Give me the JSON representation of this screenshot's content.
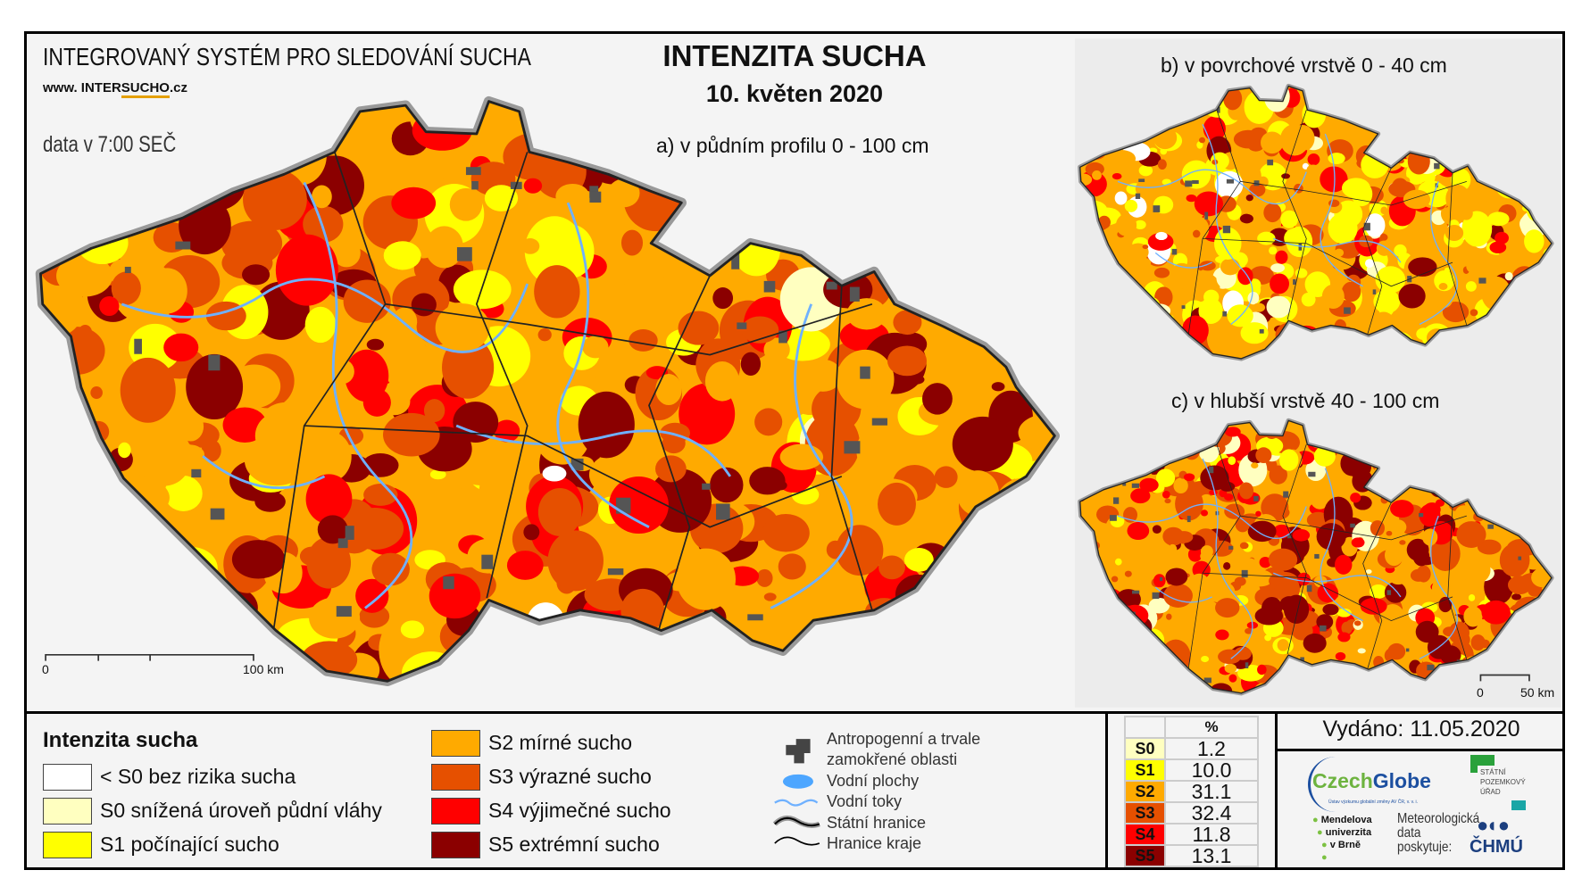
{
  "header": {
    "system_title": "INTEGROVANÝ SYSTÉM PRO SLEDOVÁNÍ SUCHA",
    "website_prefix": "www. INTER",
    "website_brand": "SUCHO",
    "website_suffix": ".cz",
    "data_time": "data v 7:00 SEČ",
    "main_title": "INTENZITA SUCHA",
    "date": "10. květen 2020"
  },
  "maps": {
    "a_title": "a) v půdním profilu 0 - 100 cm",
    "b_title": "b) v povrchové vrstvě 0 - 40 cm",
    "c_title": "c) v hlubší vrstvě 40 - 100 cm",
    "main_scale": {
      "start": "0",
      "end": "100 km"
    },
    "small_scale": {
      "start": "0",
      "end": "50 km"
    }
  },
  "legend": {
    "title": "Intenzita sucha",
    "classes": [
      {
        "code": "S-",
        "label": "< S0 bez rizika sucha",
        "color": "#ffffff"
      },
      {
        "code": "S0",
        "label": "S0 snížená úroveň půdní vláhy",
        "color": "#ffffc0"
      },
      {
        "code": "S1",
        "label": "S1 počínající sucho",
        "color": "#ffff00"
      },
      {
        "code": "S2",
        "label": "S2 mírné sucho",
        "color": "#ffaa00"
      },
      {
        "code": "S3",
        "label": "S3 výrazné sucho",
        "color": "#e65000"
      },
      {
        "code": "S4",
        "label": "S4 výjimečné sucho",
        "color": "#ff0000"
      },
      {
        "code": "S5",
        "label": "S5 extrémní sucho",
        "color": "#8b0000"
      }
    ],
    "symbols": {
      "anthropogenic": "Antropogenní a trvale",
      "anthropogenic2": "zamokřené oblasti",
      "water_areas": "Vodní plochy",
      "streams": "Vodní toky",
      "state_border": "Státní hranice",
      "region_border": "Hranice kraje"
    }
  },
  "stats": {
    "header": "%",
    "rows": [
      {
        "code": "S0",
        "value": "1.2",
        "color": "#ffffc0"
      },
      {
        "code": "S1",
        "value": "10.0",
        "color": "#ffff00"
      },
      {
        "code": "S2",
        "value": "31.1",
        "color": "#ffaa00"
      },
      {
        "code": "S3",
        "value": "32.4",
        "color": "#e65000"
      },
      {
        "code": "S4",
        "value": "11.8",
        "color": "#ff0000"
      },
      {
        "code": "S5",
        "value": "13.1",
        "color": "#8b0000"
      }
    ]
  },
  "issued": "Vydáno: 11.05.2020",
  "logos": {
    "czechglobe_a": "Czech",
    "czechglobe_b": "Globe",
    "czechglobe_sub": "Ústav výzkumu globální změny AV ČR, v. v. i.",
    "spu": "STÁTNÍ POZEMKOVÝ ÚŘAD",
    "mendel1": "Mendelova",
    "mendel2": "univerzita",
    "mendel3": "v Brně",
    "meteo1": "Meteorologická",
    "meteo2": "data",
    "meteo3": "poskytuje:",
    "chmu": "ČHMÚ"
  }
}
